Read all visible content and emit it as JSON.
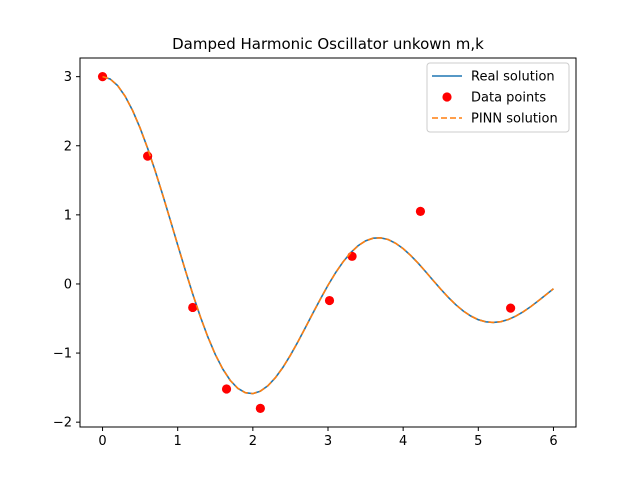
{
  "chart_data": {
    "type": "line",
    "title": "Damped Harmonic Oscillator unkown m,k",
    "xlabel": "",
    "ylabel": "",
    "xlim": [
      -0.3,
      6.3
    ],
    "ylim": [
      -2.07,
      3.27
    ],
    "xticks": [
      0,
      1,
      2,
      3,
      4,
      5,
      6
    ],
    "yticks": [
      -2,
      -1,
      0,
      1,
      2,
      3
    ],
    "grid": false,
    "legend_position": "top-right",
    "colors": {
      "real": "#1f77b4",
      "pinn": "#ff7f0e",
      "data": "#ff0000"
    },
    "series": [
      {
        "name": "Real solution",
        "style": "solid",
        "x": [
          0.0,
          0.1,
          0.2,
          0.3,
          0.4,
          0.5,
          0.6,
          0.7,
          0.8,
          0.9,
          1.0,
          1.1,
          1.2,
          1.3,
          1.4,
          1.5,
          1.6,
          1.7,
          1.8,
          1.9,
          2.0,
          2.1,
          2.2,
          2.3,
          2.4,
          2.5,
          2.6,
          2.7,
          2.8,
          2.9,
          3.0,
          3.1,
          3.2,
          3.3,
          3.4,
          3.5,
          3.6,
          3.7,
          3.8,
          3.9,
          4.0,
          4.1,
          4.2,
          4.3,
          4.4,
          4.5,
          4.6,
          4.7,
          4.8,
          4.9,
          5.0,
          5.1,
          5.2,
          5.3,
          5.4,
          5.5,
          5.6,
          5.7,
          5.8,
          5.9,
          6.0
        ],
        "y": [
          3.0,
          2.967,
          2.872,
          2.718,
          2.51,
          2.256,
          1.963,
          1.638,
          1.291,
          0.93,
          0.564,
          0.203,
          -0.145,
          -0.47,
          -0.764,
          -1.02,
          -1.232,
          -1.397,
          -1.511,
          -1.574,
          -1.587,
          -1.552,
          -1.474,
          -1.357,
          -1.207,
          -1.031,
          -0.837,
          -0.631,
          -0.421,
          -0.215,
          -0.019,
          0.161,
          0.319,
          0.451,
          0.553,
          0.624,
          0.662,
          0.668,
          0.643,
          0.589,
          0.511,
          0.413,
          0.3,
          0.177,
          0.05,
          -0.075,
          -0.193,
          -0.3,
          -0.391,
          -0.464,
          -0.517,
          -0.548,
          -0.557,
          -0.546,
          -0.514,
          -0.465,
          -0.401,
          -0.326,
          -0.243,
          -0.156,
          -0.069
        ]
      },
      {
        "name": "Data points",
        "style": "markers",
        "x": [
          0.0,
          0.6,
          1.2,
          1.65,
          2.1,
          3.02,
          3.32,
          4.23,
          5.43
        ],
        "y": [
          3.0,
          1.85,
          -0.34,
          -1.52,
          -1.8,
          -0.24,
          0.4,
          1.05,
          -0.35
        ]
      },
      {
        "name": "PINN solution",
        "style": "dashed",
        "x": [
          0.0,
          0.1,
          0.2,
          0.3,
          0.4,
          0.5,
          0.6,
          0.7,
          0.8,
          0.9,
          1.0,
          1.1,
          1.2,
          1.3,
          1.4,
          1.5,
          1.6,
          1.7,
          1.8,
          1.9,
          2.0,
          2.1,
          2.2,
          2.3,
          2.4,
          2.5,
          2.6,
          2.7,
          2.8,
          2.9,
          3.0,
          3.1,
          3.2,
          3.3,
          3.4,
          3.5,
          3.6,
          3.7,
          3.8,
          3.9,
          4.0,
          4.1,
          4.2,
          4.3,
          4.4,
          4.5,
          4.6,
          4.7,
          4.8,
          4.9,
          5.0,
          5.1,
          5.2,
          5.3,
          5.4,
          5.5,
          5.6,
          5.7,
          5.8,
          5.9,
          6.0
        ],
        "y": [
          3.0,
          2.967,
          2.872,
          2.718,
          2.51,
          2.256,
          1.963,
          1.638,
          1.291,
          0.93,
          0.564,
          0.203,
          -0.145,
          -0.47,
          -0.764,
          -1.02,
          -1.232,
          -1.397,
          -1.511,
          -1.574,
          -1.587,
          -1.552,
          -1.474,
          -1.357,
          -1.207,
          -1.031,
          -0.837,
          -0.631,
          -0.421,
          -0.215,
          -0.019,
          0.161,
          0.319,
          0.451,
          0.553,
          0.624,
          0.662,
          0.668,
          0.643,
          0.589,
          0.511,
          0.413,
          0.3,
          0.177,
          0.05,
          -0.075,
          -0.193,
          -0.3,
          -0.391,
          -0.464,
          -0.517,
          -0.548,
          -0.557,
          -0.546,
          -0.514,
          -0.465,
          -0.401,
          -0.326,
          -0.243,
          -0.156,
          -0.069
        ]
      }
    ]
  }
}
